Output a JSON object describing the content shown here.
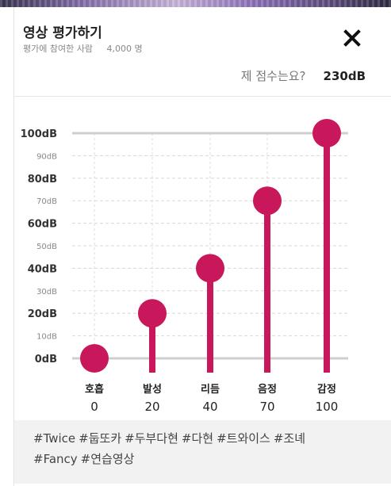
{
  "header": {
    "title": "영상 평가하기",
    "participants_label": "평가에 참여한 사람",
    "participants_count": "4,000 명",
    "score_label": "제 점수는요?",
    "score_value": "230dB"
  },
  "tags": [
    "#Twice",
    "#둡또카",
    "#두부다현",
    "#다현",
    "#트와이스",
    "#조녜",
    "#Fancy",
    "#연습영상"
  ],
  "tag_lines": {
    "line1": [
      "#Twice",
      "#둡또카",
      "#두부다현",
      "#다현",
      "#트와이스",
      "#조녜"
    ],
    "line2": [
      "#Fancy",
      "#연습영상"
    ]
  },
  "colors": {
    "accent": "#c8175a",
    "grid": "#d0d0d0",
    "baseline": "#cccccc",
    "tag_bg": "#f2f2f2"
  },
  "chart_data": {
    "type": "bar",
    "title": "",
    "xlabel": "",
    "ylabel": "",
    "ylim": [
      0,
      100
    ],
    "y_ticks_major": [
      "100dB",
      "80dB",
      "60dB",
      "40dB",
      "20dB",
      "0dB"
    ],
    "y_ticks_minor": [
      "90dB",
      "70dB",
      "50dB",
      "30dB",
      "10dB"
    ],
    "y_tick_values_major": [
      100,
      80,
      60,
      40,
      20,
      0
    ],
    "y_tick_values_minor": [
      90,
      70,
      50,
      30,
      10
    ],
    "categories": [
      "호흡",
      "발성",
      "리듬",
      "음정",
      "감정"
    ],
    "values": [
      0,
      20,
      40,
      70,
      100
    ],
    "value_labels": [
      "0",
      "20",
      "40",
      "70",
      "100"
    ]
  }
}
